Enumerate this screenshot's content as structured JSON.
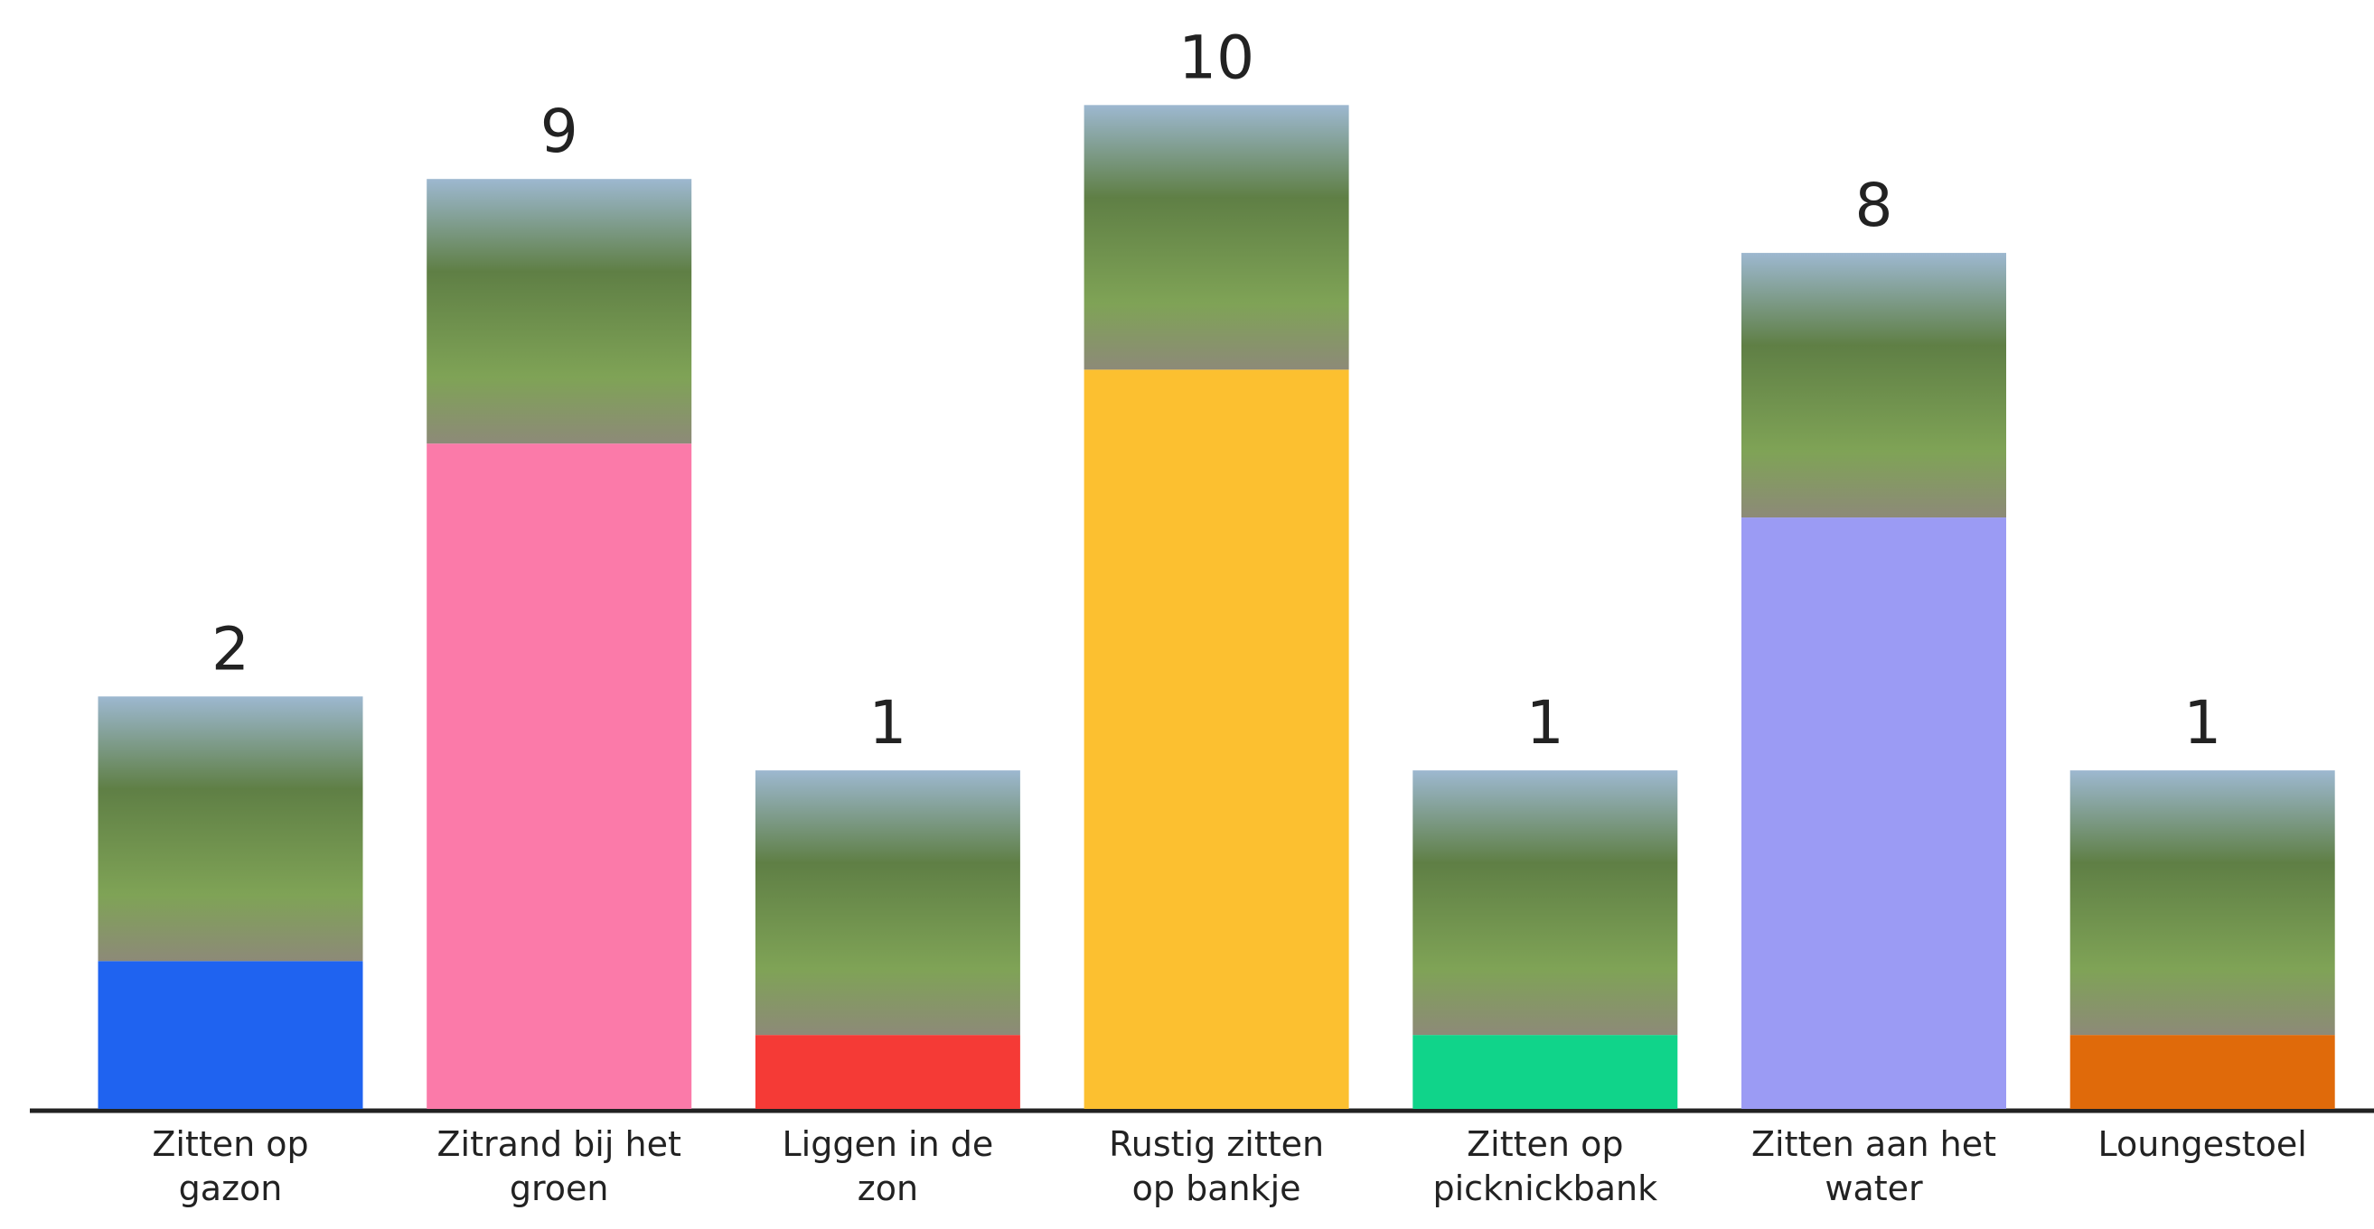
{
  "chart_data": {
    "type": "bar",
    "categories": [
      "Zitten op gazon",
      "Zitrand bij het groen",
      "Liggen in de zon",
      "Rustig zitten op bankje",
      "Zitten op picknickbank",
      "Zitten aan het water",
      "Loungestoel"
    ],
    "values": [
      2,
      9,
      1,
      10,
      1,
      8,
      1
    ],
    "colors": [
      "#1f63f0",
      "#fb7aa9",
      "#f53a36",
      "#fcc030",
      "#10d48a",
      "#9b9bf4",
      "#e06a0a"
    ],
    "ylim": [
      0,
      15
    ]
  }
}
